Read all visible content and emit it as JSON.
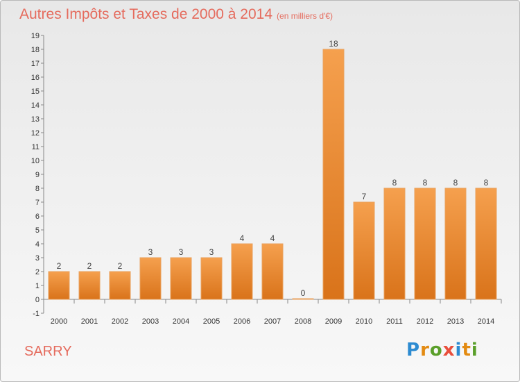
{
  "header": {
    "title": "Autres Impôts et Taxes de 2000 à 2014",
    "unit": "(en milliers d'€)"
  },
  "footer": {
    "commune": "SARRY",
    "logo": "Proxiti"
  },
  "colors": {
    "bar": "#f0913a",
    "bar_dark": "#d9731a",
    "title": "#e56b5d"
  },
  "chart_data": {
    "type": "bar",
    "categories": [
      "2000",
      "2001",
      "2002",
      "2003",
      "2004",
      "2005",
      "2006",
      "2007",
      "2008",
      "2009",
      "2010",
      "2011",
      "2012",
      "2013",
      "2014"
    ],
    "values": [
      2,
      2,
      2,
      3,
      3,
      3,
      4,
      4,
      0,
      18,
      7,
      8,
      8,
      8,
      8
    ],
    "y_ticks": [
      "-1",
      "0",
      "1",
      "2",
      "3",
      "4",
      "5",
      "6",
      "7",
      "8",
      "9",
      "10",
      "11",
      "12",
      "13",
      "14",
      "15",
      "16",
      "17",
      "18",
      "19"
    ],
    "ylim": [
      -1,
      19
    ],
    "grid": false,
    "legend": "none"
  }
}
